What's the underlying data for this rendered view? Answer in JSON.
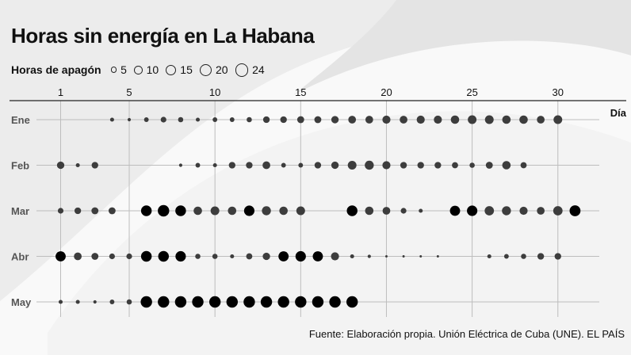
{
  "title": "Horas sin energía en La Habana",
  "legend": {
    "title": "Horas de apagón",
    "items": [
      {
        "label": "5",
        "value": 5
      },
      {
        "label": "10",
        "value": 10
      },
      {
        "label": "15",
        "value": 15
      },
      {
        "label": "20",
        "value": 20
      },
      {
        "label": "24",
        "value": 24
      }
    ]
  },
  "source": "Fuente: Elaboración propia. Unión Eléctrica de Cuba (UNE). EL PAÍS",
  "colors": {
    "dot": "#3d3d3d",
    "dot_peak": "#000000",
    "text": "#111111",
    "grid": "#bdbdbd",
    "row_label": "#555555",
    "axis_line": "#222222"
  },
  "chart_data": {
    "type": "scatter",
    "xlabel": "Día",
    "ylabel": "",
    "x_ticks": [
      1,
      5,
      10,
      15,
      20,
      25,
      30
    ],
    "xlim": [
      1,
      31
    ],
    "size_variable": "Horas de apagón",
    "series": [
      {
        "name": "Ene",
        "values": [
          0,
          0,
          0,
          3,
          2,
          4,
          6,
          5,
          3,
          4,
          4,
          5,
          8,
          8,
          9,
          9,
          10,
          11,
          11,
          12,
          11,
          12,
          12,
          13,
          14,
          14,
          13,
          13,
          11,
          14,
          0
        ]
      },
      {
        "name": "Feb",
        "values": [
          10,
          3,
          8,
          0,
          0,
          0,
          0,
          2,
          4,
          3,
          8,
          8,
          11,
          4,
          4,
          8,
          10,
          14,
          15,
          12,
          8,
          8,
          8,
          7,
          5,
          9,
          13,
          7,
          0,
          0,
          0
        ]
      },
      {
        "name": "Mar",
        "values": [
          6,
          8,
          9,
          9,
          0,
          21,
          24,
          21,
          13,
          14,
          13,
          20,
          15,
          13,
          14,
          0,
          0,
          21,
          13,
          11,
          6,
          3,
          0,
          19,
          20,
          16,
          15,
          12,
          11,
          16,
          22
        ]
      },
      {
        "name": "Abr",
        "values": [
          19,
          11,
          9,
          6,
          6,
          21,
          21,
          20,
          5,
          5,
          3,
          7,
          10,
          19,
          20,
          19,
          12,
          3,
          2,
          1,
          1,
          1,
          1,
          0,
          0,
          3,
          4,
          5,
          8,
          8,
          0
        ]
      },
      {
        "name": "May",
        "values": [
          3,
          3,
          2,
          4,
          5,
          24,
          24,
          24,
          24,
          24,
          24,
          24,
          24,
          24,
          24,
          24,
          24,
          24,
          0,
          0,
          0,
          0,
          0,
          0,
          0,
          0,
          0,
          0,
          0,
          0,
          0
        ]
      }
    ]
  }
}
